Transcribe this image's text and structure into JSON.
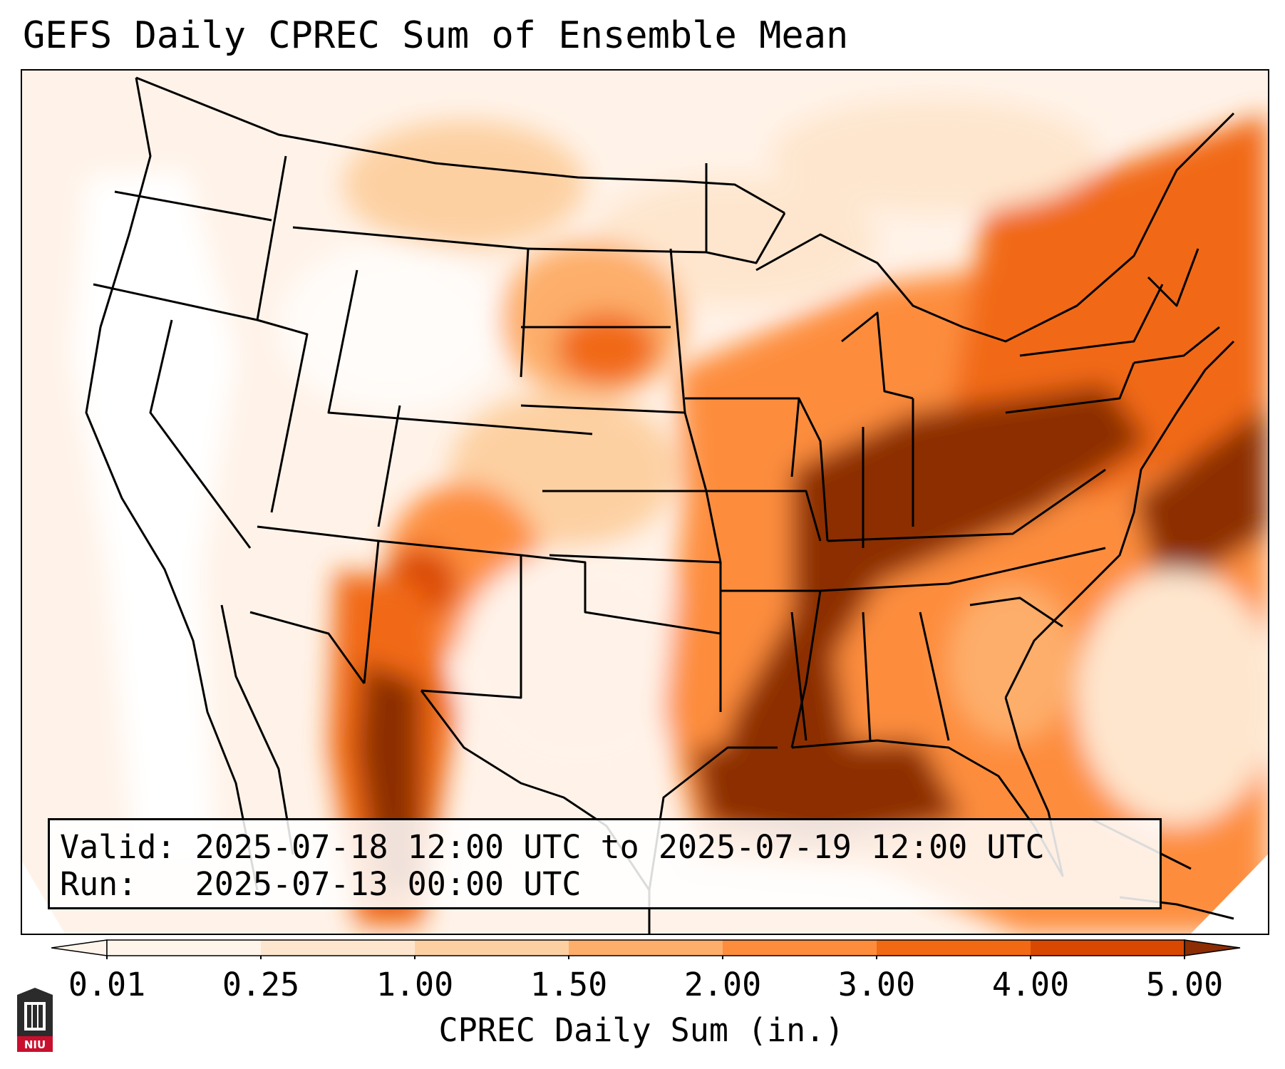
{
  "title": "GEFS Daily CPREC Sum of Ensemble Mean",
  "info": {
    "valid": "Valid: 2025-07-18 12:00 UTC to 2025-07-19 12:00 UTC",
    "run": "Run:   2025-07-13 00:00 UTC"
  },
  "colorbar": {
    "label": "CPREC Daily Sum (in.)",
    "ticks": [
      "0.01",
      "0.25",
      "1.00",
      "1.50",
      "2.00",
      "3.00",
      "4.00",
      "5.00"
    ],
    "colors": [
      "#fff5eb",
      "#fee6ce",
      "#fdd0a2",
      "#fdae6b",
      "#fd8d3c",
      "#f16913",
      "#d94801",
      "#8c2d04"
    ]
  },
  "logo": {
    "text": "NIU",
    "icon": "niu-logo-icon",
    "color": "#c8102e"
  },
  "map": {
    "region": "Continental United States",
    "field_colors": {
      "none": "#ffffff",
      "light": "#fff3e9",
      "moderate": "#fdae6b",
      "heavy": "#f16913",
      "extreme": "#8c2d04"
    }
  }
}
